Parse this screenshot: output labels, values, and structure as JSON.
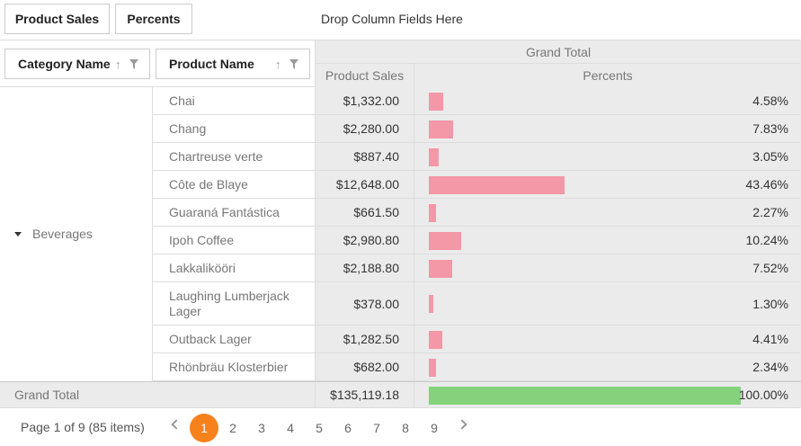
{
  "data_area": {
    "chips": [
      "Product Sales",
      "Percents"
    ],
    "drop_columns_text": "Drop Column Fields Here"
  },
  "row_fields": [
    "Category Name",
    "Product Name"
  ],
  "column_header": {
    "grand_total": "Grand Total",
    "measures": [
      "Product Sales",
      "Percents"
    ]
  },
  "category": "Beverages",
  "rows": [
    {
      "product": "Chai",
      "sales": "$1,332.00",
      "percent": "4.58%",
      "pct_value": 4.58
    },
    {
      "product": "Chang",
      "sales": "$2,280.00",
      "percent": "7.83%",
      "pct_value": 7.83
    },
    {
      "product": "Chartreuse verte",
      "sales": "$887.40",
      "percent": "3.05%",
      "pct_value": 3.05
    },
    {
      "product": "Côte de Blaye",
      "sales": "$12,648.00",
      "percent": "43.46%",
      "pct_value": 43.46
    },
    {
      "product": "Guaraná Fantástica",
      "sales": "$661.50",
      "percent": "2.27%",
      "pct_value": 2.27
    },
    {
      "product": "Ipoh Coffee",
      "sales": "$2,980.80",
      "percent": "10.24%",
      "pct_value": 10.24
    },
    {
      "product": "Lakkalikööri",
      "sales": "$2,188.80",
      "percent": "7.52%",
      "pct_value": 7.52
    },
    {
      "product": "Laughing Lumberjack Lager",
      "sales": "$378.00",
      "percent": "1.30%",
      "pct_value": 1.3
    },
    {
      "product": "Outback Lager",
      "sales": "$1,282.50",
      "percent": "4.41%",
      "pct_value": 4.41
    },
    {
      "product": "Rhönbräu Klosterbier",
      "sales": "$682.00",
      "percent": "2.34%",
      "pct_value": 2.34
    }
  ],
  "grand_total": {
    "label": "Grand Total",
    "sales": "$135,119.18",
    "percent": "100.00%",
    "pct_value": 100
  },
  "pager": {
    "info": "Page 1 of 9 (85 items)",
    "pages": [
      "1",
      "2",
      "3",
      "4",
      "5",
      "6",
      "7",
      "8",
      "9"
    ],
    "current": "1"
  },
  "colors": {
    "bar": "#f497a6",
    "total_bar": "#84d27c",
    "active_page": "#f7821b",
    "header_bg": "#ebebeb"
  }
}
